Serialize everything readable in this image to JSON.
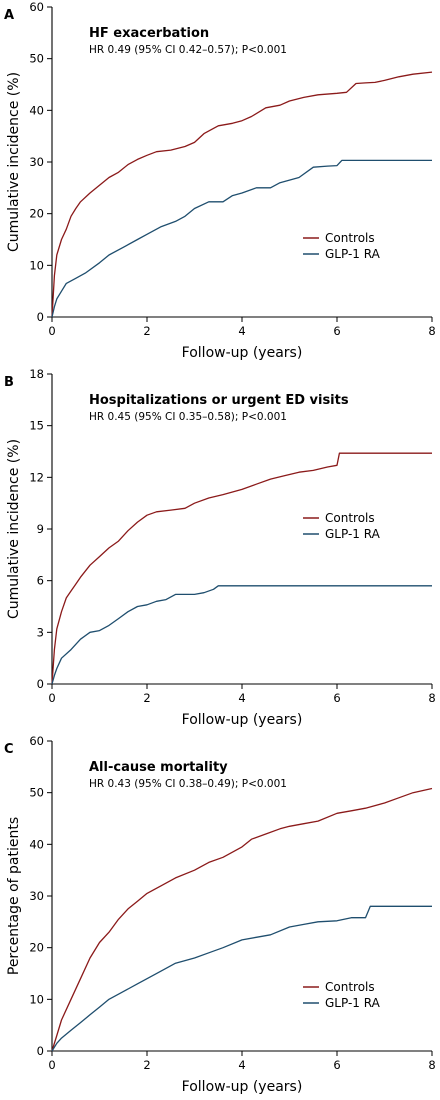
{
  "colors": {
    "controls": "#8b1a1a",
    "glp1": "#1f4e6e"
  },
  "chart_data": [
    {
      "type": "line",
      "panel": "A",
      "title": "HF exacerbation",
      "subtitle": "HR 0.49 (95% CI 0.42–0.57); P<0.001",
      "xlabel": "Follow-up (years)",
      "ylabel": "Cumulative incidence (%)",
      "xlim": [
        0,
        8
      ],
      "ylim": [
        0,
        60
      ],
      "xticks": [
        0,
        2,
        4,
        6,
        8
      ],
      "yticks": [
        0,
        10,
        20,
        30,
        40,
        50,
        60
      ],
      "legend_position": "right-middle",
      "series": [
        {
          "name": "Controls",
          "color_key": "controls",
          "x": [
            0,
            0.05,
            0.1,
            0.2,
            0.3,
            0.4,
            0.5,
            0.6,
            0.8,
            1.0,
            1.2,
            1.4,
            1.6,
            1.8,
            2.0,
            2.2,
            2.5,
            2.8,
            3.0,
            3.2,
            3.5,
            3.8,
            4.0,
            4.2,
            4.5,
            4.8,
            5.0,
            5.3,
            5.6,
            6.0,
            6.2,
            6.4,
            6.6,
            6.8,
            7.0,
            7.3,
            7.6,
            8.0
          ],
          "y": [
            0,
            8,
            12,
            15,
            17,
            19.5,
            21,
            22.3,
            24,
            25.5,
            27,
            28,
            29.5,
            30.5,
            31.3,
            32,
            32.3,
            33,
            33.8,
            35.5,
            37,
            37.5,
            38,
            38.8,
            40.5,
            41,
            41.8,
            42.5,
            43,
            43.3,
            43.5,
            45.2,
            45.3,
            45.4,
            45.8,
            46.5,
            47,
            47.4
          ]
        },
        {
          "name": "GLP-1 RA",
          "color_key": "glp1",
          "x": [
            0,
            0.05,
            0.1,
            0.2,
            0.3,
            0.5,
            0.7,
            1.0,
            1.2,
            1.5,
            1.8,
            2.0,
            2.3,
            2.6,
            2.8,
            3.0,
            3.3,
            3.6,
            3.8,
            4.0,
            4.3,
            4.6,
            4.8,
            5.0,
            5.2,
            5.5,
            5.8,
            6.0,
            6.1,
            6.5,
            7.0,
            7.5,
            8.0
          ],
          "y": [
            0,
            2,
            3.5,
            5,
            6.5,
            7.5,
            8.5,
            10.5,
            12,
            13.5,
            15,
            16,
            17.5,
            18.5,
            19.5,
            21,
            22.3,
            22.3,
            23.5,
            24,
            25,
            25,
            26,
            26.5,
            27,
            29,
            29.2,
            29.3,
            30.3,
            30.3,
            30.3,
            30.3,
            30.3
          ]
        }
      ]
    },
    {
      "type": "line",
      "panel": "B",
      "title": "Hospitalizations or urgent ED visits",
      "subtitle": "HR 0.45 (95% CI 0.35–0.58); P<0.001",
      "xlabel": "Follow-up (years)",
      "ylabel": "Cumulative incidence (%)",
      "xlim": [
        0,
        8
      ],
      "ylim": [
        0,
        18
      ],
      "xticks": [
        0,
        2,
        4,
        6,
        8
      ],
      "yticks": [
        0,
        3,
        6,
        9,
        12,
        15,
        18
      ],
      "legend_position": "right-middle",
      "series": [
        {
          "name": "Controls",
          "color_key": "controls",
          "x": [
            0,
            0.05,
            0.1,
            0.2,
            0.3,
            0.4,
            0.5,
            0.6,
            0.8,
            1.0,
            1.2,
            1.4,
            1.6,
            1.8,
            2.0,
            2.2,
            2.5,
            2.8,
            3.0,
            3.3,
            3.6,
            4.0,
            4.3,
            4.6,
            4.9,
            5.2,
            5.5,
            5.8,
            6.0,
            6.05,
            6.5,
            7.0,
            7.5,
            8.0
          ],
          "y": [
            0,
            2,
            3.2,
            4.2,
            5.0,
            5.4,
            5.8,
            6.2,
            6.9,
            7.4,
            7.9,
            8.3,
            8.9,
            9.4,
            9.8,
            10.0,
            10.1,
            10.2,
            10.5,
            10.8,
            11.0,
            11.3,
            11.6,
            11.9,
            12.1,
            12.3,
            12.4,
            12.6,
            12.7,
            13.4,
            13.4,
            13.4,
            13.4,
            13.4
          ]
        },
        {
          "name": "GLP-1 RA",
          "color_key": "glp1",
          "x": [
            0,
            0.05,
            0.1,
            0.2,
            0.4,
            0.6,
            0.8,
            1.0,
            1.2,
            1.4,
            1.6,
            1.8,
            2.0,
            2.2,
            2.4,
            2.6,
            2.8,
            3.0,
            3.2,
            3.4,
            3.5,
            3.8,
            4.0,
            5.0,
            6.0,
            7.0,
            8.0
          ],
          "y": [
            0,
            0.5,
            0.9,
            1.5,
            2.0,
            2.6,
            3.0,
            3.1,
            3.4,
            3.8,
            4.2,
            4.5,
            4.6,
            4.8,
            4.9,
            5.2,
            5.2,
            5.2,
            5.3,
            5.5,
            5.7,
            5.7,
            5.7,
            5.7,
            5.7,
            5.7,
            5.7
          ]
        }
      ]
    },
    {
      "type": "line",
      "panel": "C",
      "title": "All-cause mortality",
      "subtitle": "HR 0.43 (95% CI 0.38–0.49); P<0.001",
      "xlabel": "Follow-up (years)",
      "ylabel": "Percentage of patients",
      "xlim": [
        0,
        8
      ],
      "ylim": [
        0,
        60
      ],
      "xticks": [
        0,
        2,
        4,
        6,
        8
      ],
      "yticks": [
        0,
        10,
        20,
        30,
        40,
        50,
        60
      ],
      "legend_position": "bottom-right",
      "series": [
        {
          "name": "Controls",
          "color_key": "controls",
          "x": [
            0,
            0.1,
            0.2,
            0.4,
            0.6,
            0.8,
            1.0,
            1.2,
            1.4,
            1.6,
            1.8,
            2.0,
            2.3,
            2.6,
            3.0,
            3.3,
            3.6,
            4.0,
            4.2,
            4.5,
            4.8,
            5.0,
            5.3,
            5.6,
            6.0,
            6.3,
            6.6,
            7.0,
            7.3,
            7.6,
            8.0
          ],
          "y": [
            0,
            3,
            6,
            10,
            14,
            18,
            21,
            23,
            25.5,
            27.5,
            29,
            30.5,
            32,
            33.5,
            35,
            36.5,
            37.5,
            39.5,
            41,
            42,
            43,
            43.5,
            44,
            44.5,
            46,
            46.5,
            47,
            48,
            49,
            50,
            50.8
          ]
        },
        {
          "name": "GLP-1 RA",
          "color_key": "glp1",
          "x": [
            0,
            0.1,
            0.2,
            0.4,
            0.6,
            0.8,
            1.0,
            1.2,
            1.5,
            1.8,
            2.0,
            2.3,
            2.6,
            3.0,
            3.3,
            3.6,
            4.0,
            4.3,
            4.6,
            5.0,
            5.3,
            5.6,
            6.0,
            6.3,
            6.6,
            6.7,
            7.0,
            7.5,
            8.0
          ],
          "y": [
            0,
            1.5,
            2.5,
            4,
            5.5,
            7,
            8.5,
            10,
            11.5,
            13,
            14,
            15.5,
            17,
            18,
            19,
            20,
            21.5,
            22,
            22.5,
            24,
            24.5,
            25,
            25.2,
            25.8,
            25.8,
            28,
            28,
            28,
            28
          ]
        }
      ]
    }
  ]
}
